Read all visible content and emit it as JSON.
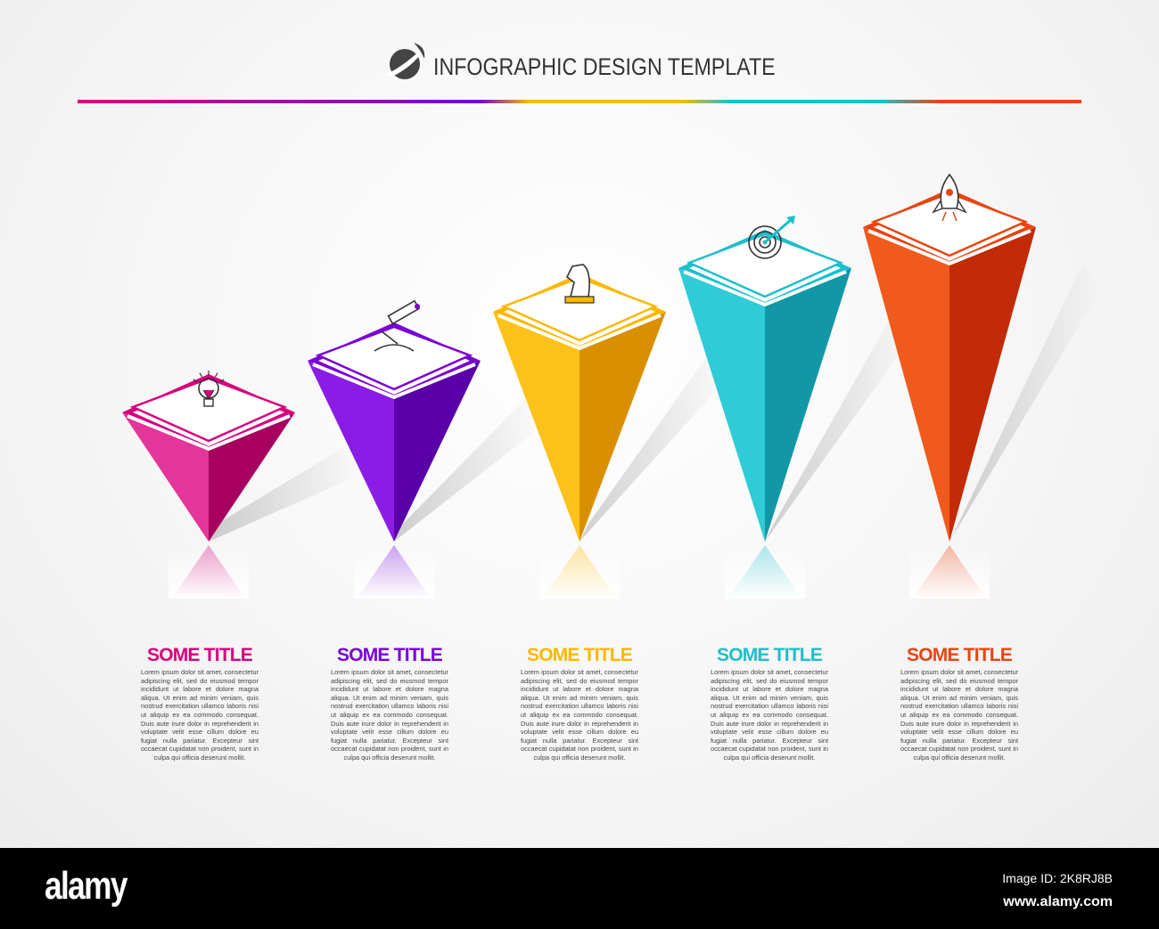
{
  "header": {
    "title": "INFOGRAPHIC DESIGN TEMPLATE",
    "logo_icon": "moon-swoosh-logo-icon"
  },
  "rule_colors": [
    "#d6007e",
    "#7a00d6",
    "#fbb800",
    "#1cbfcc",
    "#e84411"
  ],
  "steps": [
    {
      "title": "SOME TITLE",
      "color": "#d6007e",
      "light": "#e3359a",
      "dark": "#a8005f",
      "icon": "lightbulb-icon",
      "body": "Lorem ipsum dolor sit amet, consectetur adipiscing elit, sed do eiusmod tempor incididunt ut labore et dolore magna aliqua. Ut enim ad minim veniam, quis nostrud exercitation ullamco laboris nisi ut aliquip ex ea commodo consequat. Duis aute irure dolor in reprehenderit in voluptate velit esse cillum dolore eu fugiat nulla pariatur. Excepteur sint occaecat cupidatat non proident, sunt in culpa qui officia deserunt mollit."
    },
    {
      "title": "SOME TITLE",
      "color": "#7a00d6",
      "light": "#8a1ce6",
      "dark": "#5a00a8",
      "icon": "microscope-icon",
      "body": "Lorem ipsum dolor sit amet, consectetur adipiscing elit, sed do eiusmod tempor incididunt ut labore et dolore magna aliqua. Ut enim ad minim veniam, quis nostrud exercitation ullamco laboris nisi ut aliquip ex ea commodo consequat. Duis aute irure dolor in reprehenderit in voluptate velit esse cillum dolore eu fugiat nulla pariatur. Excepteur sint occaecat cupidatat non proident, sunt in culpa qui officia deserunt mollit."
    },
    {
      "title": "SOME TITLE",
      "color": "#fbb800",
      "light": "#fdc21a",
      "dark": "#d99000",
      "icon": "chess-knight-icon",
      "body": "Lorem ipsum dolor sit amet, consectetur adipiscing elit, sed do eiusmod tempor incididunt ut labore et dolore magna aliqua. Ut enim ad minim veniam, quis nostrud exercitation ullamco laboris nisi ut aliquip ex ea commodo consequat. Duis aute irure dolor in reprehenderit in voluptate velit esse cillum dolore eu fugiat nulla pariatur. Excepteur sint occaecat cupidatat non proident, sunt in culpa qui officia deserunt mollit."
    },
    {
      "title": "SOME TITLE",
      "color": "#1cbfcc",
      "light": "#2fcbd6",
      "dark": "#1297a6",
      "icon": "target-arrow-icon",
      "body": "Lorem ipsum dolor sit amet, consectetur adipiscing elit, sed do eiusmod tempor incididunt ut labore et dolore magna aliqua. Ut enim ad minim veniam, quis nostrud exercitation ullamco laboris nisi ut aliquip ex ea commodo consequat. Duis aute irure dolor in reprehenderit in voluptate velit esse cillum dolore eu fugiat nulla pariatur. Excepteur sint occaecat cupidatat non proident, sunt in culpa qui officia deserunt mollit."
    },
    {
      "title": "SOME TITLE",
      "color": "#e84411",
      "light": "#f05a1c",
      "dark": "#c22a08",
      "icon": "rocket-icon",
      "body": "Lorem ipsum dolor sit amet, consectetur adipiscing elit, sed do eiusmod tempor incididunt ut labore et dolore magna aliqua. Ut enim ad minim veniam, quis nostrud exercitation ullamco laboris nisi ut aliquip ex ea commodo consequat. Duis aute irure dolor in reprehenderit in voluptate velit esse cillum dolore eu fugiat nulla pariatur. Excepteur sint occaecat cupidatat non proident, sunt in culpa qui officia deserunt mollit."
    }
  ],
  "footer": {
    "logo": "alamy",
    "image_id": "Image ID: 2K8RJ8B",
    "url": "www.alamy.com"
  }
}
